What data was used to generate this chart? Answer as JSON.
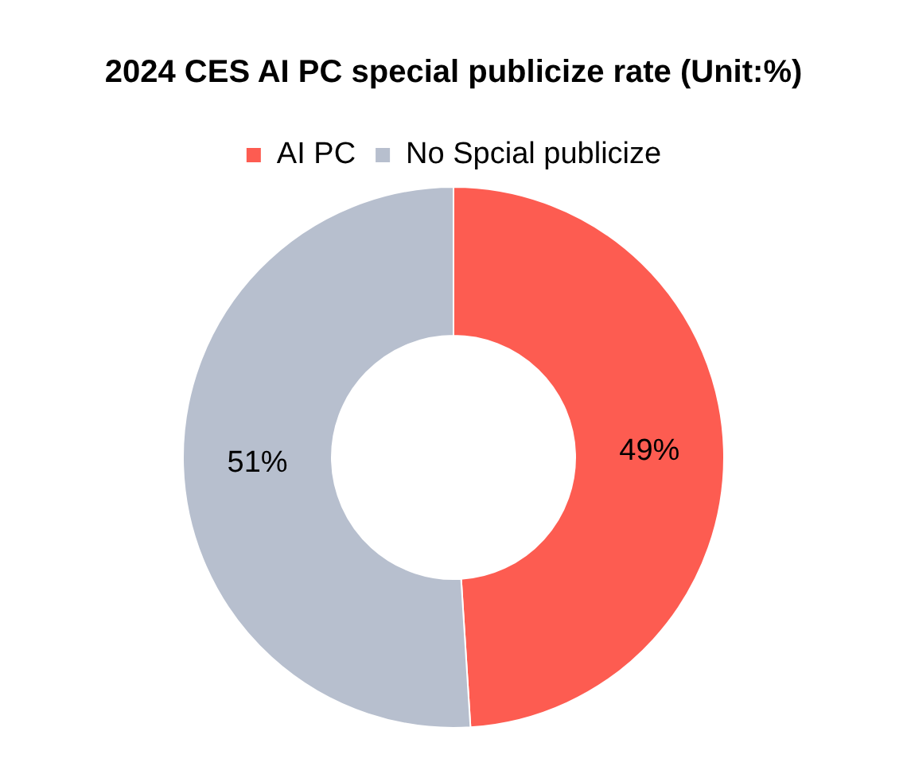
{
  "chart_data": {
    "type": "donut",
    "title": "2024 CES AI PC special publicize rate (Unit:%)",
    "categories": [
      "AI PC",
      "No Spcial publicize"
    ],
    "values": [
      49,
      51
    ],
    "colors": [
      "#fd5c51",
      "#b7bfce"
    ],
    "legend": "top",
    "value_labels": [
      "49%",
      "51%"
    ]
  }
}
